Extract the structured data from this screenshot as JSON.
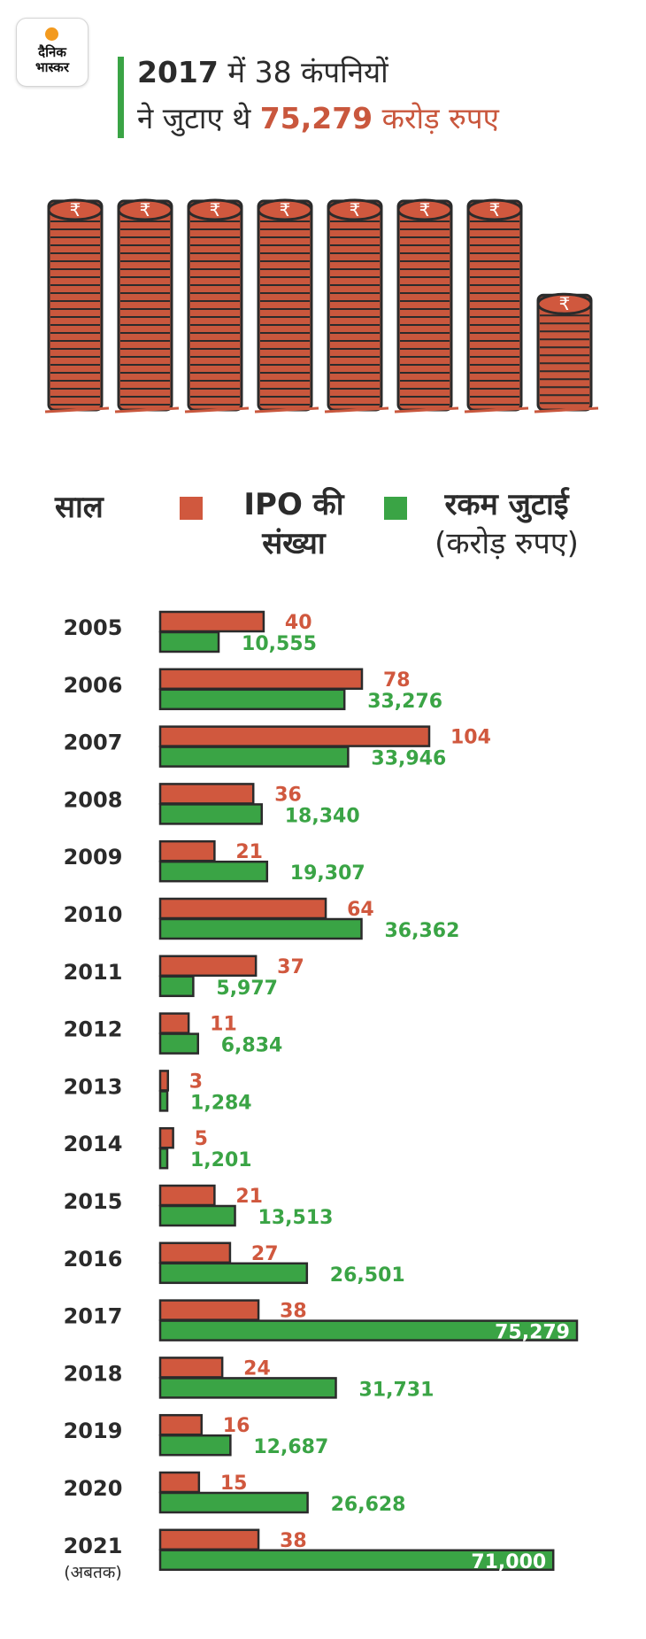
{
  "brand": {
    "line1": "दैनिक",
    "line2": "भास्कर"
  },
  "headline": {
    "line1_year": "2017",
    "line1_rest": "में 38 कंपनियों",
    "line2_start": "ने जुटाए थे",
    "amount": "75,279",
    "unit": "करोड़ रुपए"
  },
  "coin_symbol": "₹",
  "coin_stacks": [
    1,
    1,
    1,
    1,
    1,
    1,
    1,
    0.55
  ],
  "legend": {
    "year_label": "साल",
    "ipo_line1": "IPO की",
    "ipo_line2": "संख्या",
    "amount_line1": "रकम जुटाई",
    "amount_line2": "(करोड़ रुपए)"
  },
  "colors": {
    "ipo": "#d0583e",
    "amount": "#3aa445",
    "accent": "#c9573d",
    "ink": "#2b2b2b"
  },
  "chart_data": {
    "type": "bar",
    "orientation": "horizontal",
    "categories": [
      "2005",
      "2006",
      "2007",
      "2008",
      "2009",
      "2010",
      "2011",
      "2012",
      "2013",
      "2014",
      "2015",
      "2016",
      "2017",
      "2018",
      "2019",
      "2020",
      "2021"
    ],
    "category_notes": {
      "2021": "(अबतक)"
    },
    "series": [
      {
        "name": "IPO की संख्या",
        "values": [
          40,
          78,
          104,
          36,
          21,
          64,
          37,
          11,
          3,
          5,
          21,
          27,
          38,
          24,
          16,
          15,
          38
        ],
        "labels": [
          "40",
          "78",
          "104",
          "36",
          "21",
          "64",
          "37",
          "11",
          "3",
          "5",
          "21",
          "27",
          "38",
          "24",
          "16",
          "15",
          "38"
        ]
      },
      {
        "name": "रकम जुटाई (करोड़ रुपए)",
        "values": [
          10555,
          33276,
          33946,
          18340,
          19307,
          36362,
          5977,
          6834,
          1284,
          1201,
          13513,
          26501,
          75279,
          31731,
          12687,
          26628,
          71000
        ],
        "labels": [
          "10,555",
          "33,276",
          "33,946",
          "18,340",
          "19,307",
          "36,362",
          "5,977",
          "6,834",
          "1,284",
          "1,201",
          "13,513",
          "26,501",
          "75,279",
          "31,731",
          "12,687",
          "26,628",
          "71,000"
        ]
      }
    ],
    "highlight_inside_label": [
      "2017",
      "2021"
    ]
  }
}
